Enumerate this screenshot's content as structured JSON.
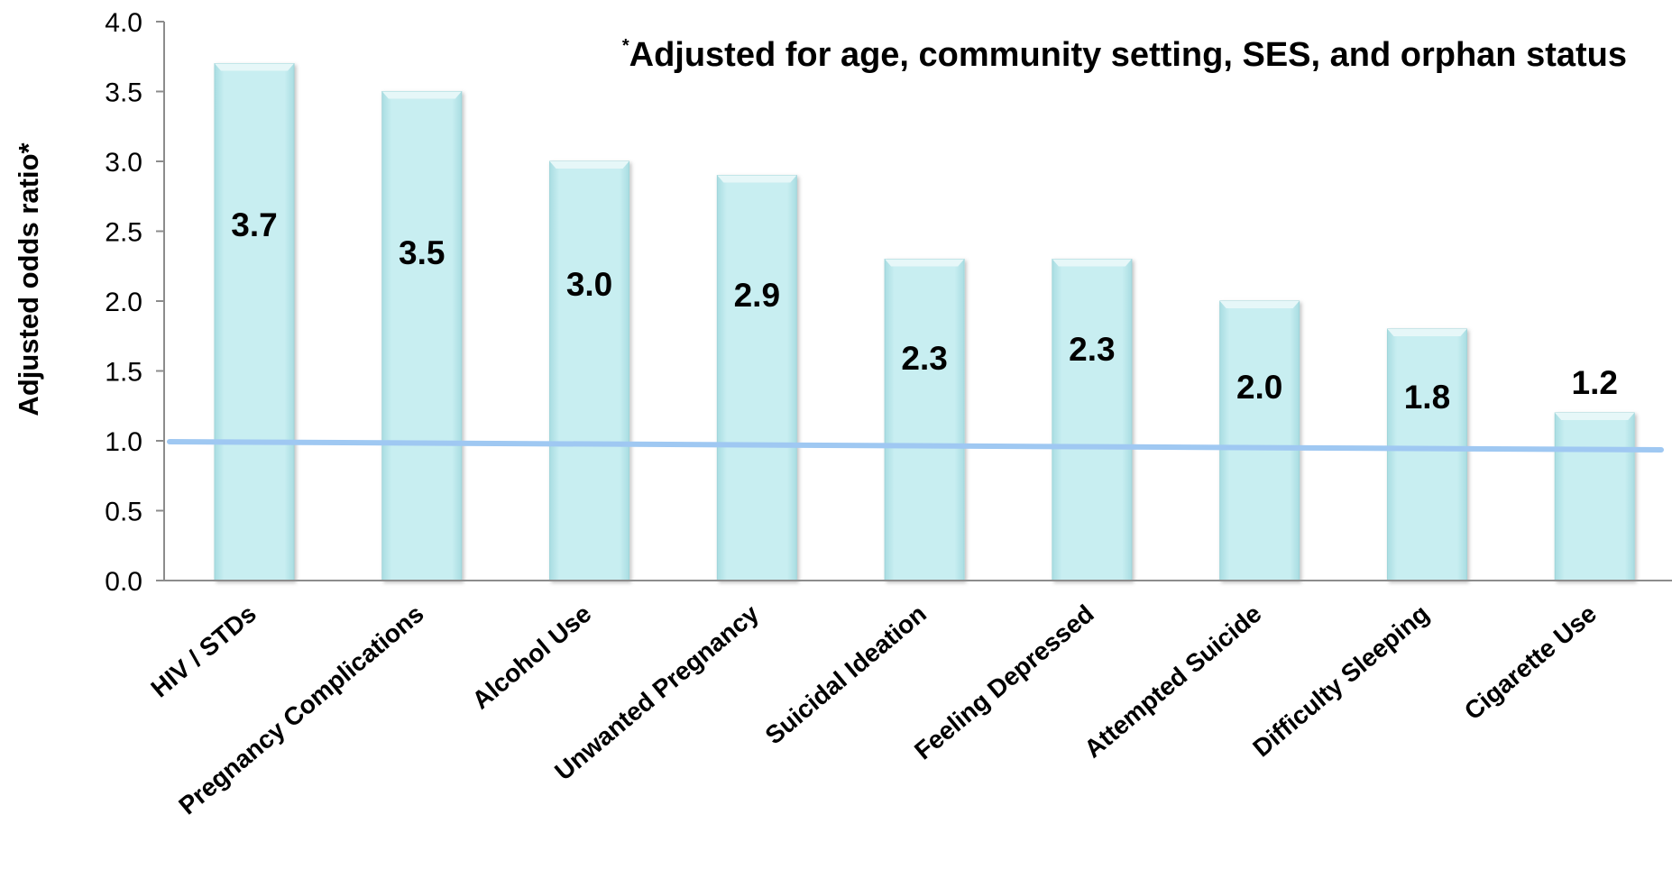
{
  "chart_data": {
    "type": "bar",
    "title": "",
    "annotation": {
      "marker": "*",
      "text": "Adjusted for age, community setting, SES, and orphan status"
    },
    "xlabel": "",
    "ylabel": "Adjusted odds ratio*",
    "ylim": [
      0,
      4.0
    ],
    "yticks": [
      "0.0",
      "0.5",
      "1.0",
      "1.5",
      "2.0",
      "2.5",
      "3.0",
      "3.5",
      "4.0"
    ],
    "categories": [
      "HIV / STDs",
      "Pregnancy Complications",
      "Alcohol Use",
      "Unwanted Pregnancy",
      "Suicidal Ideation",
      "Feeling Depressed",
      "Attempted Suicide",
      "Difficulty Sleeping",
      "Cigarette Use"
    ],
    "values": [
      3.7,
      3.5,
      3.0,
      2.9,
      2.3,
      2.3,
      2.0,
      1.8,
      1.2
    ],
    "value_labels": [
      "3.7",
      "3.5",
      "3.0",
      "2.9",
      "2.3",
      "2.3",
      "2.0",
      "1.8",
      "1.2"
    ],
    "reference_line": {
      "value": 1.0
    },
    "grid": false,
    "legend": "none",
    "colors": {
      "bar_fill": "#c5ecef",
      "bar_edge": "#9fd5da",
      "reference_line": "#9fc8f2",
      "axis": "#8c8c8c",
      "text": "#000000"
    }
  }
}
